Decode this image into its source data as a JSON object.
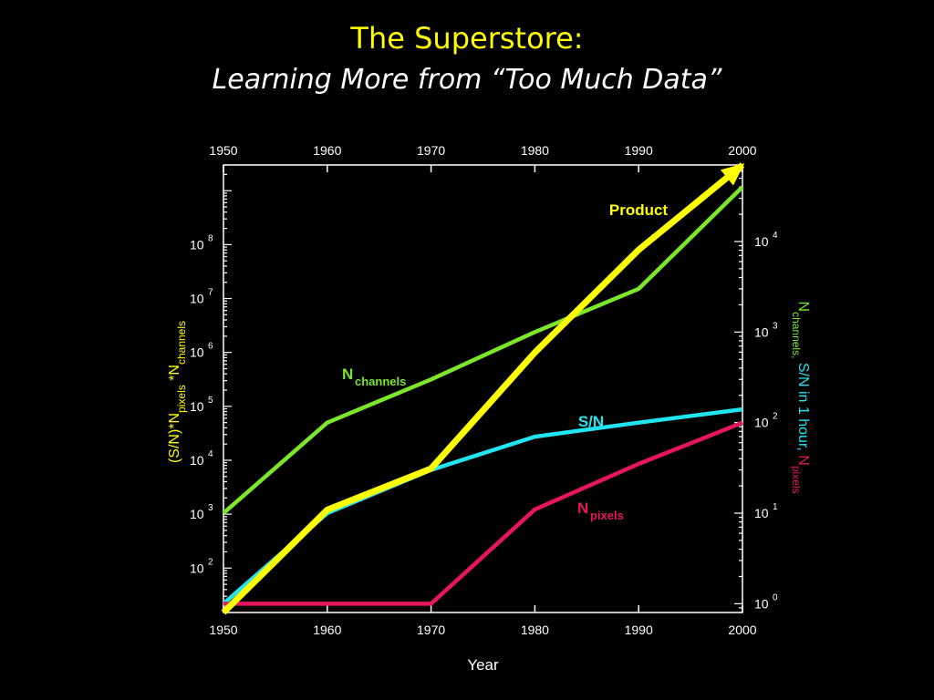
{
  "title": "The Superstore:",
  "subtitle": "Learning More from “Too Much Data”",
  "chart_data": {
    "type": "line",
    "xlabel": "Year",
    "xlim": [
      1950,
      2000
    ],
    "x_ticks": [
      "1950",
      "1960",
      "1970",
      "1980",
      "1990",
      "2000"
    ],
    "left_axis": {
      "scale": "log",
      "ylim": [
        15,
        3000000000
      ],
      "tick_base": "10",
      "tick_exponents": [
        "2",
        "3",
        "4",
        "5",
        "6",
        "7",
        "8"
      ],
      "label": {
        "parts": [
          {
            "text": "(S/N)*N",
            "sub": false
          },
          {
            "text": "pixels",
            "sub": true
          },
          {
            "text": " *N",
            "sub": false
          },
          {
            "text": "channels",
            "sub": true
          }
        ],
        "color": "#ffff00"
      }
    },
    "right_axis": {
      "scale": "log",
      "ylim": [
        0.8,
        70000
      ],
      "tick_base": "10",
      "tick_exponents": [
        "0",
        "1",
        "2",
        "3",
        "4"
      ],
      "label": {
        "parts": [
          {
            "text": "N",
            "sub": false,
            "color": "#7be62a"
          },
          {
            "text": "channels,",
            "sub": true,
            "color": "#7be62a"
          },
          {
            "text": " S/N in 1 hour,",
            "sub": false,
            "color": "#22e4f0"
          },
          {
            "text": "  N",
            "sub": false,
            "color": "#e8155d"
          },
          {
            "text": "pixels",
            "sub": true,
            "color": "#e8155d"
          }
        ]
      }
    },
    "series": [
      {
        "axis": "left",
        "color": "#ffff00",
        "label": "Product",
        "x": [
          1950,
          1960,
          1970,
          1980,
          1990,
          2000
        ],
        "values": [
          15,
          1200,
          7000,
          1000000,
          80000000,
          3000000000
        ]
      },
      {
        "axis": "right",
        "color": "#7be62a",
        "label_main": "N",
        "label_sub": "channels",
        "x": [
          1950,
          1960,
          1970,
          1980,
          1990,
          2000
        ],
        "values": [
          10,
          100,
          300,
          1000,
          3000,
          40000
        ]
      },
      {
        "axis": "right",
        "color": "#22e4f0",
        "label": "S/N",
        "x": [
          1950,
          1960,
          1970,
          1980,
          1990,
          2000
        ],
        "values": [
          1,
          10,
          30,
          70,
          100,
          140
        ]
      },
      {
        "axis": "right",
        "color": "#e8155d",
        "label_main": "N",
        "label_sub": "pixels",
        "x": [
          1950,
          1960,
          1970,
          1980,
          1990,
          2000
        ],
        "values": [
          1,
          1,
          1,
          11,
          35,
          100
        ]
      }
    ]
  }
}
